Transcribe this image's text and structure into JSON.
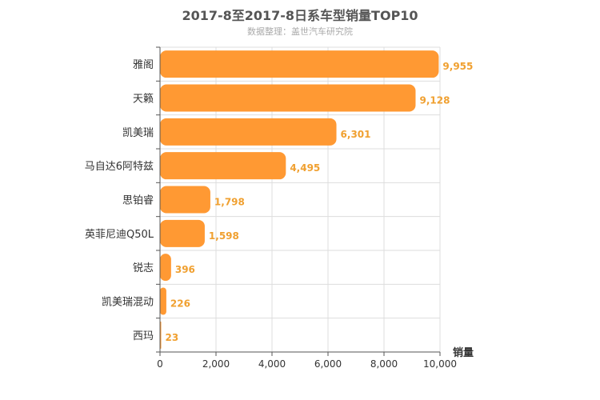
{
  "chart_data": {
    "type": "bar",
    "orientation": "horizontal",
    "title": "2017-8至2017-8日系车型销量TOP10",
    "subtitle": "数据整理：盖世汽车研究院",
    "categories": [
      "雅阁",
      "天籁",
      "凯美瑞",
      "马自达6阿特兹",
      "思铂睿",
      "英菲尼迪Q50L",
      "锐志",
      "凯美瑞混动",
      "西玛"
    ],
    "values": [
      9955,
      9128,
      6301,
      4495,
      1798,
      1598,
      396,
      226,
      23
    ],
    "value_labels": [
      "9,955",
      "9,128",
      "6,301",
      "4,495",
      "1,798",
      "1,598",
      "396",
      "226",
      "23"
    ],
    "xlabel": "销量",
    "ylabel": "",
    "xlim": [
      0,
      10000
    ],
    "x_ticks": [
      0,
      2000,
      4000,
      6000,
      8000,
      10000
    ],
    "x_tick_labels": [
      "0",
      "2,000",
      "4,000",
      "6,000",
      "8,000",
      "10,000"
    ],
    "grid": true,
    "bar_color": "#FF9933",
    "label_color": "#F0A030"
  }
}
